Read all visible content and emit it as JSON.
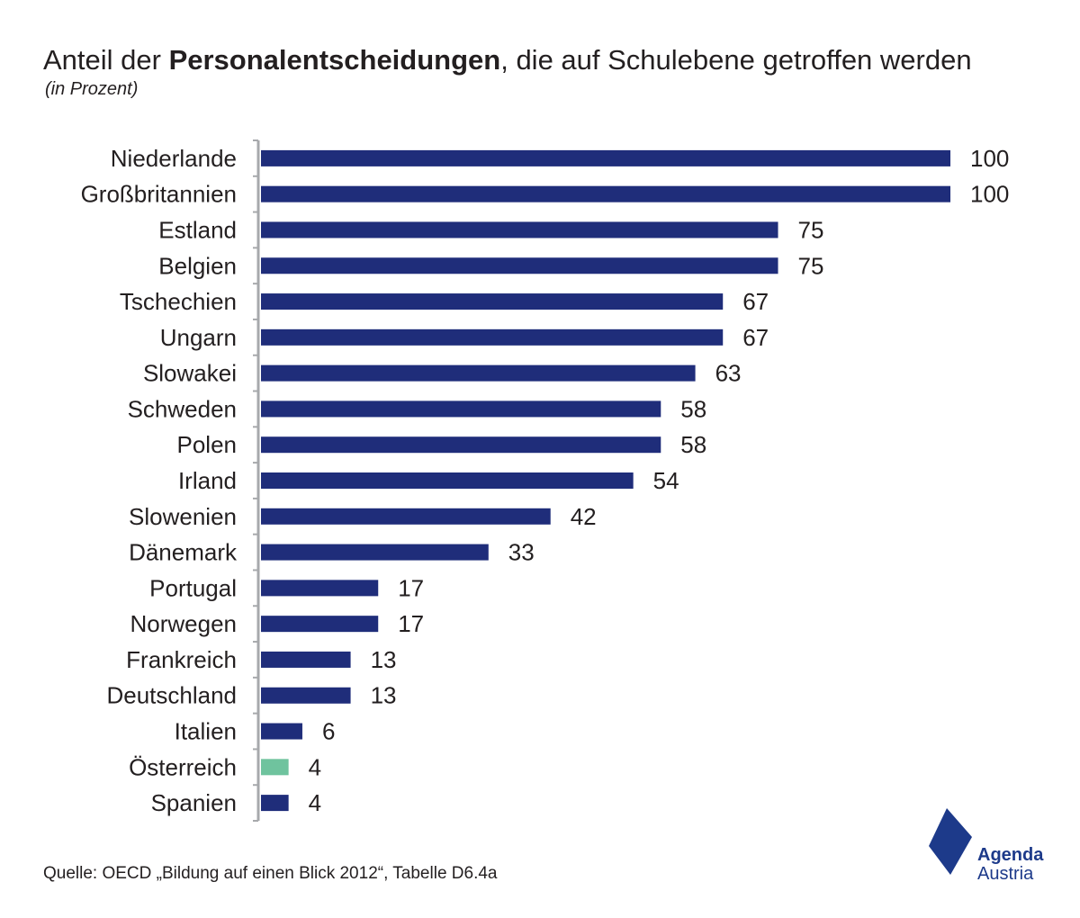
{
  "title": {
    "prefix": "Anteil der ",
    "bold": "Personalentscheidungen",
    "suffix": ", die auf Schulebene getroffen werden"
  },
  "subtitle": "(in Prozent)",
  "source": "Quelle: OECD „Bildung auf einen Blick 2012“, Tabelle D6.4a",
  "logo": {
    "line1": "Agenda",
    "line2": "Austria",
    "color": "#1d3a8a"
  },
  "colors": {
    "bar": "#1f2d7a",
    "highlight": "#6fc39e",
    "axis": "#a7a9ac"
  },
  "chart_data": {
    "type": "bar",
    "orientation": "horizontal",
    "categories": [
      "Niederlande",
      "Großbritannien",
      "Estland",
      "Belgien",
      "Tschechien",
      "Ungarn",
      "Slowakei",
      "Schweden",
      "Polen",
      "Irland",
      "Slowenien",
      "Dänemark",
      "Portugal",
      "Norwegen",
      "Frankreich",
      "Deutschland",
      "Italien",
      "Österreich",
      "Spanien"
    ],
    "values": [
      100,
      100,
      75,
      75,
      67,
      67,
      63,
      58,
      58,
      54,
      42,
      33,
      17,
      17,
      13,
      13,
      6,
      4,
      4
    ],
    "highlight": "Österreich",
    "xlim": [
      0,
      100
    ],
    "data_labels": true,
    "grid": false
  }
}
